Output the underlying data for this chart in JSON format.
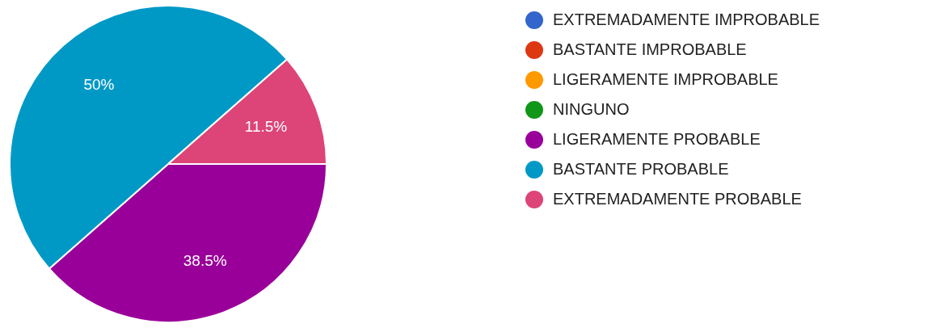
{
  "chart_data": {
    "type": "pie",
    "categories": [
      "EXTREMADAMENTE IMPROBABLE",
      "BASTANTE IMPROBABLE",
      "LIGERAMENTE IMPROBABLE",
      "NINGUNO",
      "LIGERAMENTE PROBABLE",
      "BASTANTE PROBABLE",
      "EXTREMADAMENTE PROBABLE"
    ],
    "values": [
      0,
      0,
      0,
      0,
      38.5,
      50,
      11.5
    ],
    "colors": [
      "#3366cc",
      "#dc3912",
      "#ff9900",
      "#109618",
      "#990099",
      "#0099c6",
      "#dd4477"
    ],
    "value_labels": [
      null,
      null,
      null,
      null,
      "38.5%",
      "50%",
      "11.5%"
    ],
    "legend": "right"
  }
}
